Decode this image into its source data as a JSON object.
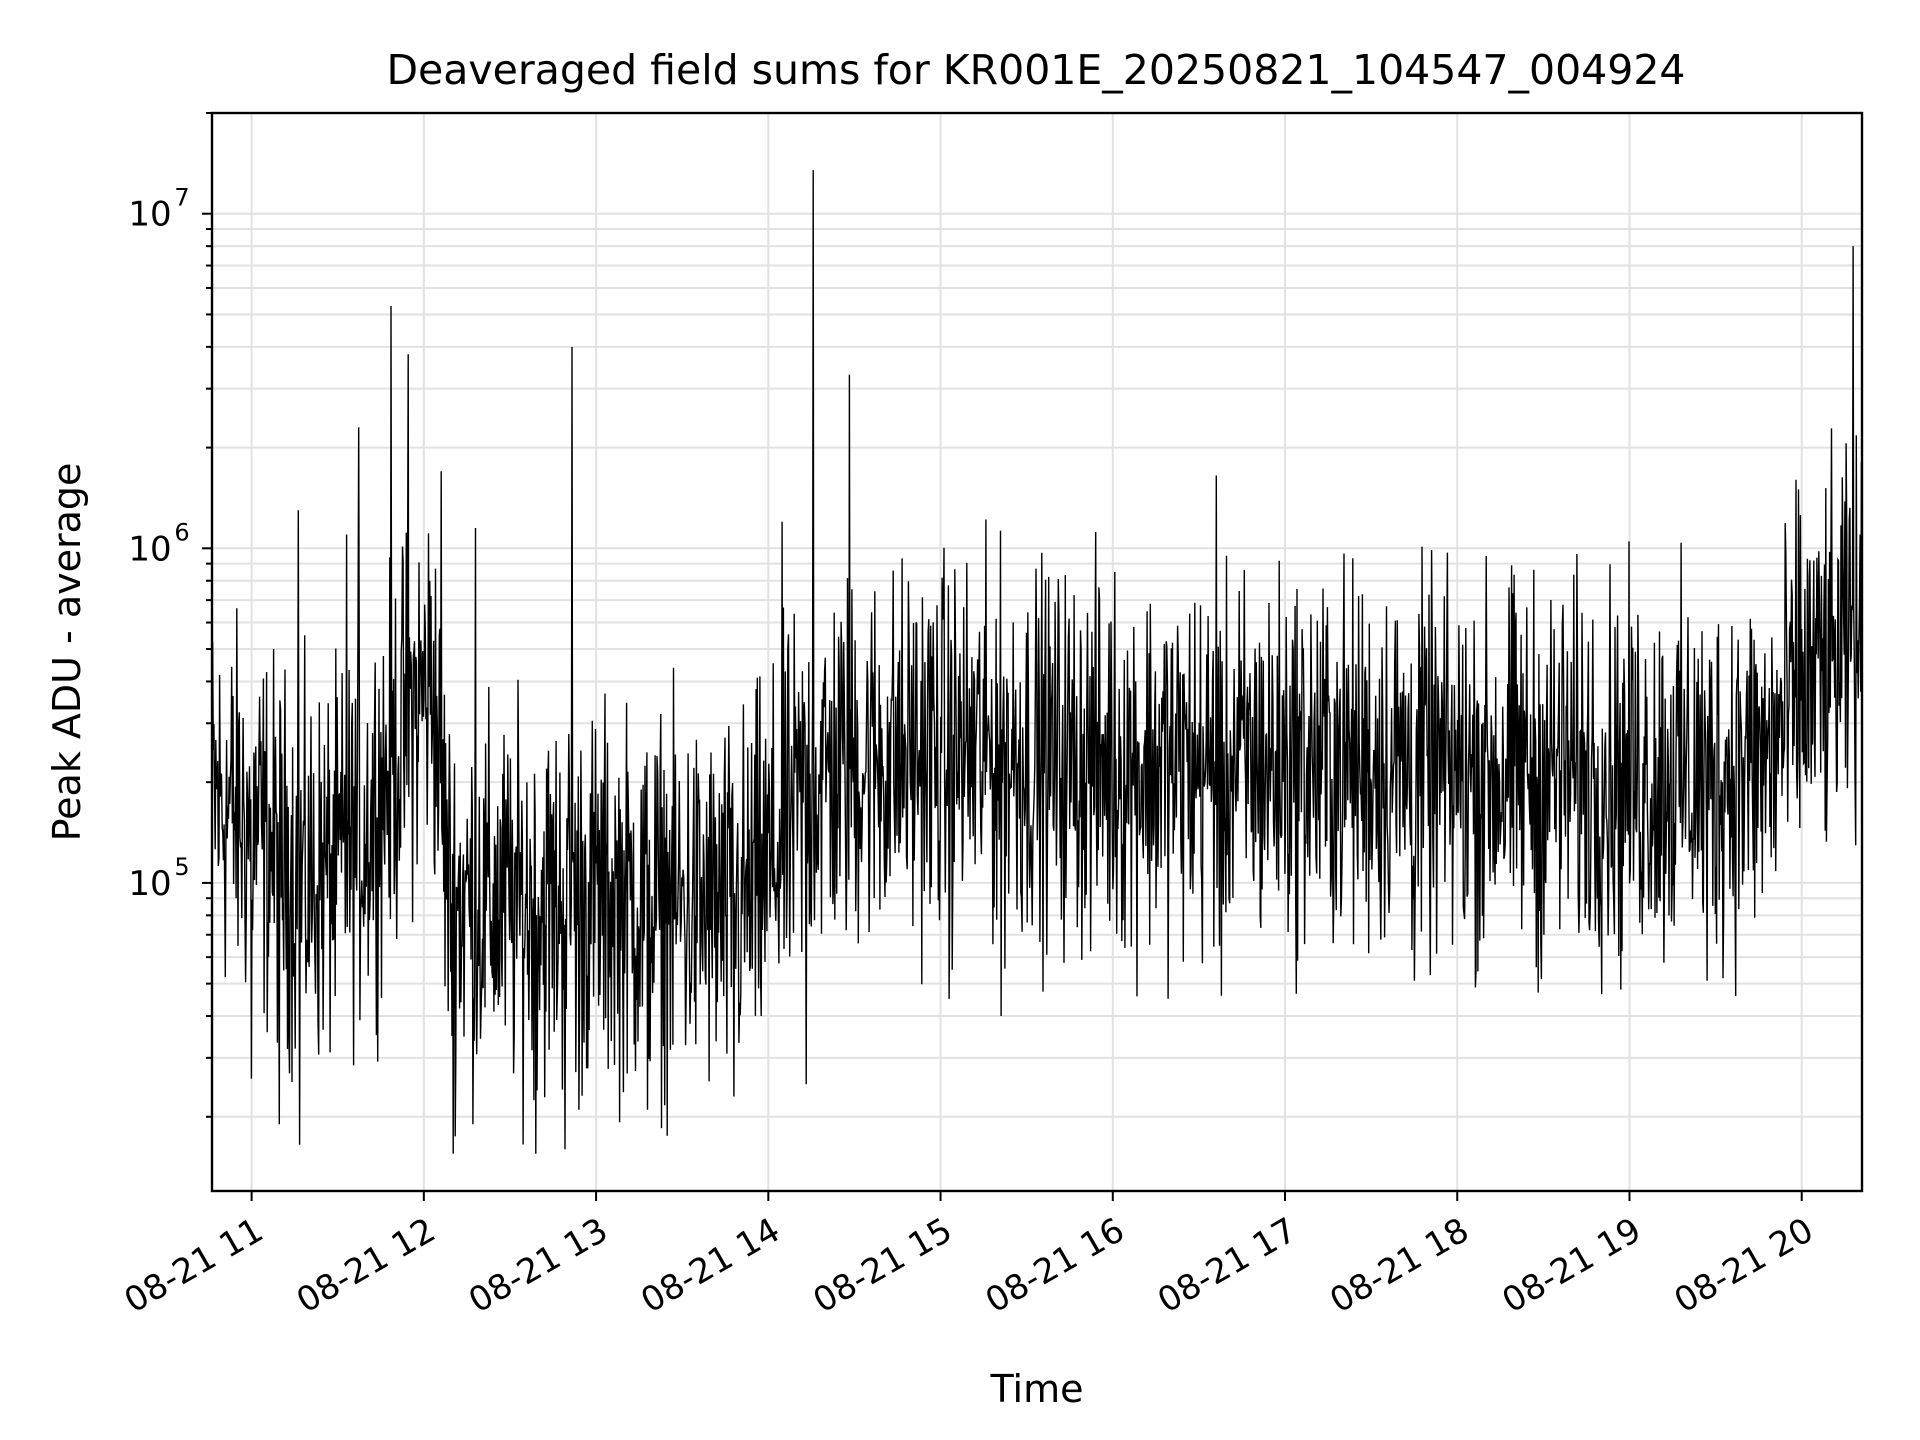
{
  "chart_data": {
    "type": "line",
    "title": "Deaveraged field sums for KR001E_20250821_104547_004924",
    "xlabel": "Time",
    "ylabel": "Peak ADU - average",
    "yscale": "log",
    "ylim": [
      12000,
      20000000
    ],
    "xlim_hours": [
      10.77,
      20.35
    ],
    "grid": true,
    "x_ticks": [
      {
        "hour": 11,
        "label": "08-21 11"
      },
      {
        "hour": 12,
        "label": "08-21 12"
      },
      {
        "hour": 13,
        "label": "08-21 13"
      },
      {
        "hour": 14,
        "label": "08-21 14"
      },
      {
        "hour": 15,
        "label": "08-21 15"
      },
      {
        "hour": 16,
        "label": "08-21 16"
      },
      {
        "hour": 17,
        "label": "08-21 17"
      },
      {
        "hour": 18,
        "label": "08-21 18"
      },
      {
        "hour": 19,
        "label": "08-21 19"
      },
      {
        "hour": 20,
        "label": "08-21 20"
      }
    ],
    "y_ticks": [
      {
        "value": 100000,
        "base": "10",
        "exp": "5"
      },
      {
        "value": 1000000,
        "base": "10",
        "exp": "6"
      },
      {
        "value": 10000000,
        "base": "10",
        "exp": "7"
      }
    ],
    "series": [
      {
        "color": "#000000",
        "baseline": [
          [
            10.77,
            180000
          ],
          [
            11.0,
            150000
          ],
          [
            11.3,
            100000
          ],
          [
            11.5,
            110000
          ],
          [
            11.7,
            160000
          ],
          [
            11.9,
            300000
          ],
          [
            12.05,
            420000
          ],
          [
            12.15,
            90000
          ],
          [
            12.5,
            85000
          ],
          [
            13.0,
            90000
          ],
          [
            13.5,
            85000
          ],
          [
            13.8,
            80000
          ],
          [
            14.0,
            110000
          ],
          [
            14.25,
            200000
          ],
          [
            14.5,
            230000
          ],
          [
            15.0,
            250000
          ],
          [
            15.5,
            240000
          ],
          [
            16.0,
            230000
          ],
          [
            16.5,
            220000
          ],
          [
            17.0,
            230000
          ],
          [
            17.5,
            230000
          ],
          [
            18.0,
            210000
          ],
          [
            18.5,
            220000
          ],
          [
            19.0,
            210000
          ],
          [
            19.5,
            210000
          ],
          [
            19.8,
            230000
          ],
          [
            20.0,
            380000
          ],
          [
            20.2,
            450000
          ],
          [
            20.35,
            550000
          ]
        ],
        "spikes": [
          [
            11.27,
            1300000
          ],
          [
            11.55,
            1100000
          ],
          [
            11.62,
            2300000
          ],
          [
            11.81,
            5300000
          ],
          [
            11.91,
            3800000
          ],
          [
            12.1,
            1700000
          ],
          [
            12.3,
            1150000
          ],
          [
            12.86,
            4000000
          ],
          [
            14.08,
            1200000
          ],
          [
            14.26,
            13500000
          ],
          [
            14.47,
            3300000
          ],
          [
            16.6,
            1650000
          ],
          [
            19.98,
            1500000
          ],
          [
            20.3,
            8000000
          ],
          [
            20.34,
            1100000
          ]
        ],
        "dips": [
          [
            11.0,
            26000
          ],
          [
            11.16,
            19000
          ],
          [
            11.28,
            16500
          ],
          [
            12.17,
            15500
          ],
          [
            12.65,
            15500
          ],
          [
            12.82,
            16000
          ],
          [
            12.9,
            21000
          ],
          [
            13.3,
            21000
          ],
          [
            13.8,
            23000
          ],
          [
            14.22,
            25000
          ],
          [
            15.05,
            45000
          ],
          [
            15.35,
            40000
          ],
          [
            16.63,
            46000
          ],
          [
            17.75,
            51000
          ],
          [
            18.47,
            47000
          ],
          [
            18.95,
            48000
          ],
          [
            19.45,
            51000
          ]
        ]
      }
    ]
  }
}
